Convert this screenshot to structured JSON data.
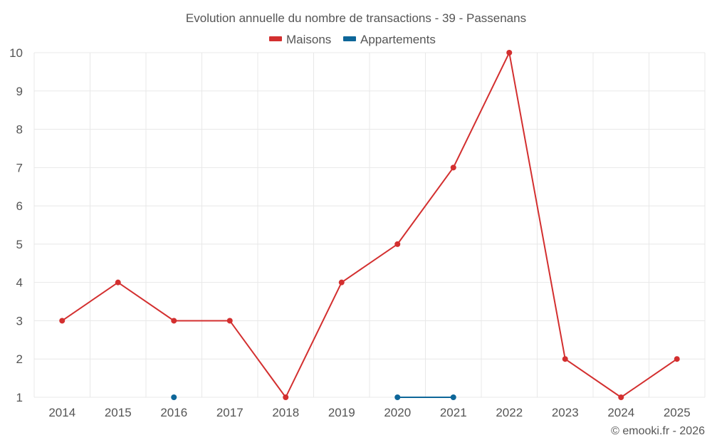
{
  "chart_data": {
    "type": "line",
    "title": "Evolution annuelle du nombre de transactions - 39 - Passenans",
    "xlabel": "",
    "ylabel": "",
    "categories": [
      "2014",
      "2015",
      "2016",
      "2017",
      "2018",
      "2019",
      "2020",
      "2021",
      "2022",
      "2023",
      "2024",
      "2025"
    ],
    "ylim": [
      1,
      10
    ],
    "yticks": [
      1,
      2,
      3,
      4,
      5,
      6,
      7,
      8,
      9,
      10
    ],
    "grid": true,
    "legend_position": "top-center",
    "series": [
      {
        "name": "Maisons",
        "color": "#d32f2f",
        "values": [
          3,
          4,
          3,
          3,
          1,
          4,
          5,
          7,
          10,
          2,
          1,
          2
        ]
      },
      {
        "name": "Appartements",
        "color": "#0d6699",
        "values": [
          null,
          null,
          1,
          null,
          null,
          null,
          1,
          1,
          null,
          null,
          null,
          null
        ]
      }
    ]
  },
  "credit": "© emooki.fr - 2026"
}
